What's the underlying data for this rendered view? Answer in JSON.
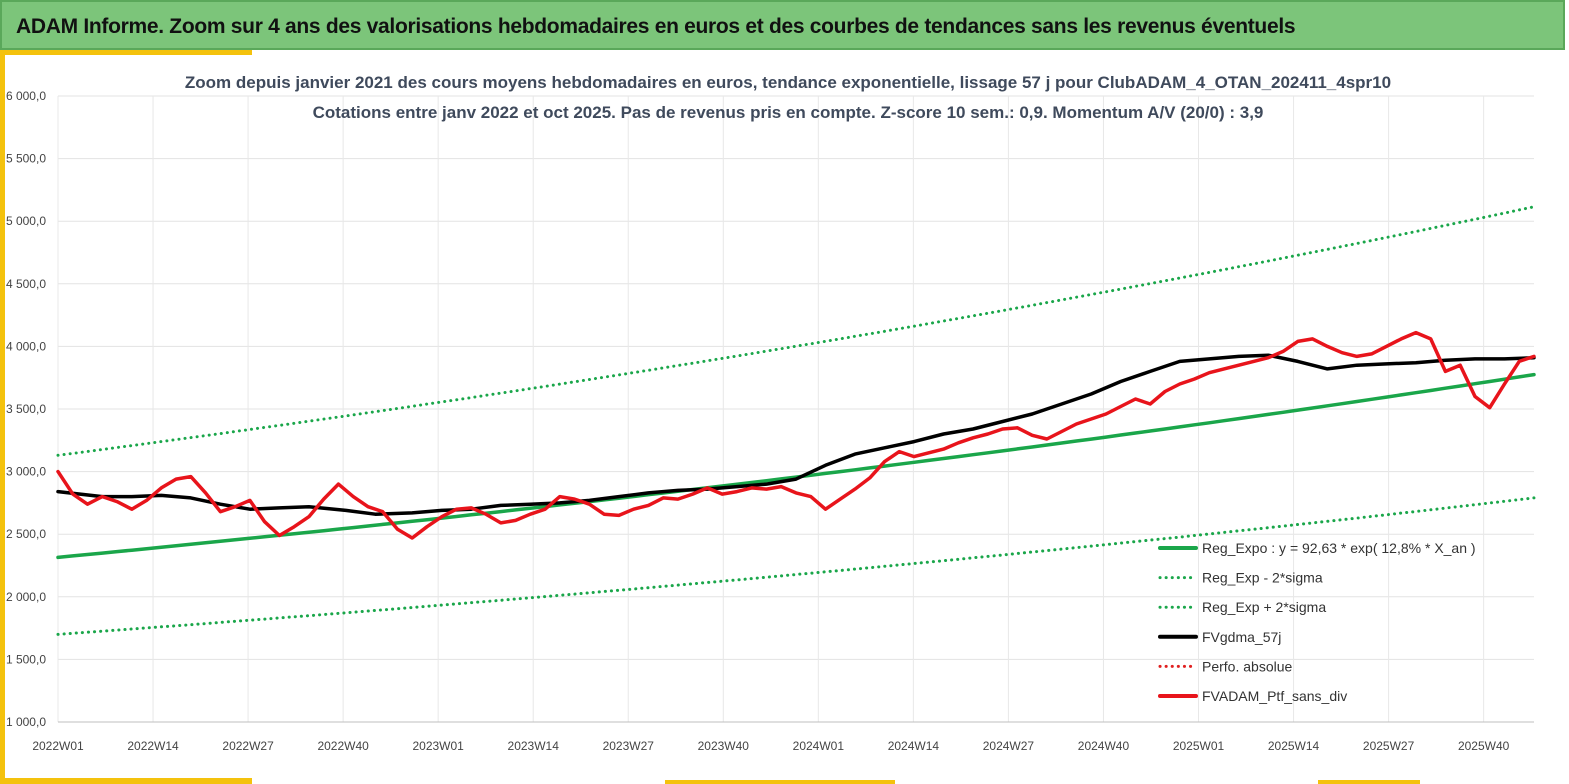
{
  "banner": {
    "title": "ADAM Informe. Zoom sur 4 ans des valorisations hebdomadaires en euros et des courbes de tendances sans les revenus éventuels"
  },
  "chart_data": {
    "type": "line",
    "title": "Zoom depuis janvier 2021 des cours moyens hebdomadaires  en euros, tendance exponentielle, lissage 57 j pour ClubADAM_4_OTAN_202411_4spr10",
    "subtitle": "Cotations  entre janv 2022 et oct 2025. Pas de revenus pris en compte. Z-score 10 sem.: 0,9. Momentum A/V (20/0) : 3,9",
    "xlabel": "",
    "ylabel": "",
    "ylim": [
      1000,
      6000
    ],
    "y_ticks": [
      "6 000,0",
      "5 500,0",
      "5 000,0",
      "4 500,0",
      "4 000,0",
      "3 500,0",
      "3 000,0",
      "2 500,0",
      "2 000,0",
      "1 500,0",
      "1 000,0"
    ],
    "x_tick_labels": [
      "2022W01",
      "2022W14",
      "2022W27",
      "2022W40",
      "2023W01",
      "2023W14",
      "2023W27",
      "2023W40",
      "2024W01",
      "2024W14",
      "2024W27",
      "2024W40",
      "2025W01",
      "2025W14",
      "2025W27",
      "2025W40"
    ],
    "grid": true,
    "legend_position": "bottom-right",
    "series": [
      {
        "name": "Reg_Expo : y = 92,63 * exp( 12,8% *  X_an )",
        "color": "#1aa64a",
        "style": "solid",
        "x": [
          0,
          200
        ],
        "values": [
          2315,
          3775
        ],
        "curve": "exponential"
      },
      {
        "name": "Reg_Exp - 2*sigma",
        "color": "#1aa64a",
        "style": "dotted",
        "x": [
          0,
          200
        ],
        "values": [
          1700,
          2790
        ],
        "curve": "exponential"
      },
      {
        "name": "Reg_Exp + 2*sigma",
        "color": "#1aa64a",
        "style": "dotted",
        "x": [
          0,
          200
        ],
        "values": [
          3130,
          5115
        ],
        "curve": "exponential"
      },
      {
        "name": "FVgdma_57j",
        "color": "#000000",
        "style": "solid",
        "x": [
          0,
          3,
          6,
          10,
          14,
          18,
          22,
          26,
          30,
          34,
          39,
          43,
          48,
          52,
          56,
          60,
          64,
          68,
          72,
          76,
          80,
          84,
          88,
          92,
          96,
          100,
          104,
          108,
          112,
          116,
          120,
          124,
          128,
          132,
          136,
          140,
          144,
          148,
          152,
          156,
          160,
          164,
          168,
          172,
          176,
          180,
          184,
          188,
          192,
          196,
          200
        ],
        "values": [
          2840,
          2820,
          2800,
          2800,
          2810,
          2790,
          2740,
          2700,
          2710,
          2720,
          2690,
          2660,
          2670,
          2690,
          2700,
          2730,
          2740,
          2750,
          2770,
          2800,
          2830,
          2850,
          2860,
          2880,
          2900,
          2940,
          3050,
          3140,
          3190,
          3240,
          3300,
          3340,
          3400,
          3460,
          3540,
          3620,
          3720,
          3800,
          3880,
          3900,
          3920,
          3930,
          3880,
          3820,
          3850,
          3860,
          3870,
          3890,
          3900,
          3900,
          3910
        ]
      },
      {
        "name": "Perfo. absolue",
        "color": "#e02020",
        "style": "dotted",
        "x": [],
        "values": []
      },
      {
        "name": "FVADAM_Ptf_sans_div",
        "color": "#e8141b",
        "style": "solid",
        "x": [
          0,
          2,
          4,
          6,
          8,
          10,
          12,
          14,
          16,
          18,
          20,
          22,
          24,
          26,
          28,
          30,
          32,
          34,
          36,
          38,
          40,
          42,
          44,
          46,
          48,
          50,
          52,
          54,
          56,
          58,
          60,
          62,
          64,
          66,
          68,
          70,
          72,
          74,
          76,
          78,
          80,
          82,
          84,
          86,
          88,
          90,
          92,
          94,
          96,
          98,
          100,
          102,
          104,
          106,
          108,
          110,
          112,
          114,
          116,
          118,
          120,
          122,
          124,
          126,
          128,
          130,
          132,
          134,
          136,
          138,
          140,
          142,
          144,
          146,
          148,
          150,
          152,
          154,
          156,
          158,
          160,
          162,
          164,
          166,
          168,
          170,
          172,
          174,
          176,
          178,
          180,
          182,
          184,
          186,
          188,
          190,
          192,
          194,
          196,
          198,
          200
        ],
        "values": [
          3000,
          2820,
          2740,
          2800,
          2760,
          2700,
          2770,
          2870,
          2940,
          2960,
          2830,
          2680,
          2720,
          2770,
          2600,
          2490,
          2560,
          2640,
          2780,
          2900,
          2800,
          2720,
          2680,
          2540,
          2470,
          2560,
          2640,
          2700,
          2710,
          2660,
          2590,
          2610,
          2660,
          2700,
          2800,
          2780,
          2740,
          2660,
          2650,
          2700,
          2730,
          2790,
          2780,
          2820,
          2870,
          2820,
          2840,
          2870,
          2860,
          2880,
          2830,
          2800,
          2700,
          2780,
          2860,
          2950,
          3080,
          3160,
          3120,
          3150,
          3180,
          3230,
          3270,
          3300,
          3340,
          3350,
          3290,
          3260,
          3320,
          3380,
          3420,
          3460,
          3520,
          3580,
          3540,
          3640,
          3700,
          3740,
          3790,
          3820,
          3850,
          3880,
          3910,
          3960,
          4040,
          4060,
          4000,
          3950,
          3920,
          3940,
          4000,
          4060,
          4110,
          4060,
          3800,
          3850,
          3600,
          3510,
          3700,
          3880,
          3920
        ]
      }
    ]
  }
}
